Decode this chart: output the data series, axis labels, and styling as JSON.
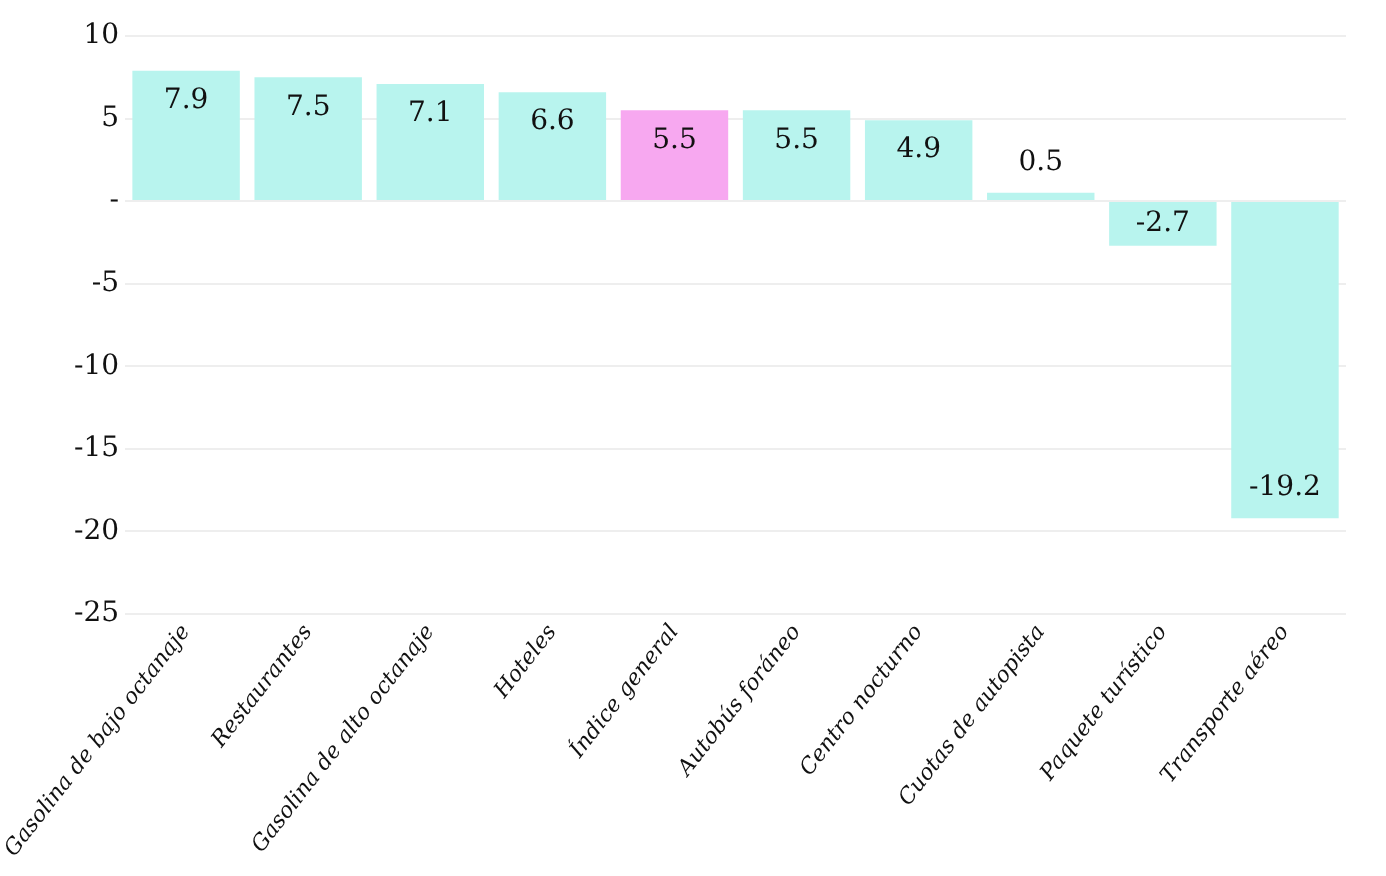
{
  "chart_data": {
    "type": "bar",
    "categories": [
      "Gasolina de bajo octanaje",
      "Restaurantes",
      "Gasolina de alto octanaje",
      "Hoteles",
      "Índice general",
      "Autobús foráneo",
      "Centro nocturno",
      "Cuotas de autopista",
      "Paquete turístico",
      "Transporte aéreo"
    ],
    "values": [
      7.9,
      7.5,
      7.1,
      6.6,
      5.5,
      5.5,
      4.9,
      0.5,
      -2.7,
      -19.2
    ],
    "colors": [
      "#b8f4ee",
      "#b8f4ee",
      "#b8f4ee",
      "#b8f4ee",
      "#f7a8f0",
      "#b8f4ee",
      "#b8f4ee",
      "#b8f4ee",
      "#b8f4ee",
      "#b8f4ee"
    ],
    "ylim": [
      -25,
      10
    ],
    "yticks": [
      10,
      5,
      {
        "value": 0,
        "label": "-"
      },
      -5,
      -10,
      -15,
      -20,
      -25
    ],
    "grid": "y",
    "data_labels": true,
    "legend": false
  }
}
